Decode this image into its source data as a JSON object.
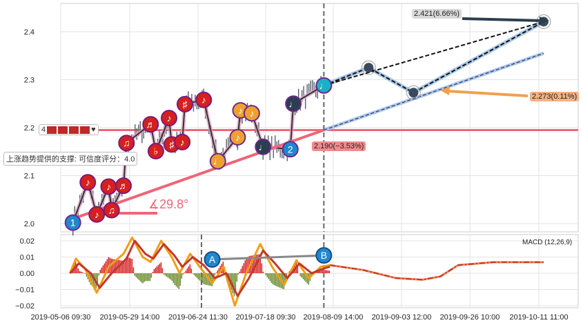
{
  "chart_data": [
    {
      "type": "line",
      "panel": "price",
      "x_ticks": [
        "2019-05-06 09:30",
        "2019-05-29 14:00",
        "2019-06-24 11:30",
        "2019-07-18 09:30",
        "2019-08-09 14:00",
        "2019-09-03 12:00",
        "2019-09-26 10:00",
        "2019-10-11 11:00"
      ],
      "y_ticks": [
        "2.0",
        "2.1",
        "2.2",
        "2.3",
        "2.4"
      ],
      "ylim": [
        1.98,
        2.46
      ],
      "grid": true,
      "markers": [
        {
          "date": "2019-05-10",
          "price": 2.002,
          "glyph": "1",
          "color": "#1e88d0"
        },
        {
          "date": "2019-05-15",
          "price": 2.086,
          "glyph": "♪",
          "color": "#d62020"
        },
        {
          "date": "2019-05-18",
          "price": 2.019,
          "glyph": "♪",
          "color": "#d62020"
        },
        {
          "date": "2019-05-22",
          "price": 2.077,
          "glyph": "♪",
          "color": "#d62020"
        },
        {
          "date": "2019-05-23",
          "price": 2.028,
          "glyph": "♫",
          "color": "#d62020"
        },
        {
          "date": "2019-05-27",
          "price": 2.079,
          "glyph": "♬",
          "color": "#d62020"
        },
        {
          "date": "2019-05-28",
          "price": 2.168,
          "glyph": "♫",
          "color": "#d62020"
        },
        {
          "date": "2019-06-06",
          "price": 2.207,
          "glyph": "♬",
          "color": "#d62020"
        },
        {
          "date": "2019-06-08",
          "price": 2.151,
          "glyph": "♭",
          "color": "#d62020"
        },
        {
          "date": "2019-06-13",
          "price": 2.22,
          "glyph": "♪",
          "color": "#d62020"
        },
        {
          "date": "2019-06-14",
          "price": 2.165,
          "glyph": "♯",
          "color": "#d62020"
        },
        {
          "date": "2019-06-18",
          "price": 2.17,
          "glyph": "♪",
          "color": "#d62020"
        },
        {
          "date": "2019-06-19",
          "price": 2.249,
          "glyph": "♯",
          "color": "#d62020"
        },
        {
          "date": "2019-06-26",
          "price": 2.258,
          "glyph": "♪",
          "color": "#d62020"
        },
        {
          "date": "2019-07-01",
          "price": 2.13,
          "glyph": "♩",
          "color": "#f0a030"
        },
        {
          "date": "2019-07-08",
          "price": 2.18,
          "glyph": "♪",
          "color": "#f0a030"
        },
        {
          "date": "2019-07-09",
          "price": 2.236,
          "glyph": "♪",
          "color": "#f0a030"
        },
        {
          "date": "2019-07-13",
          "price": 2.23,
          "glyph": "♪",
          "color": "#f0a030"
        },
        {
          "date": "2019-07-17",
          "price": 2.16,
          "glyph": "♩",
          "color": "#2c3e50"
        },
        {
          "date": "2019-07-26",
          "price": 2.155,
          "glyph": "2",
          "color": "#1e88d0"
        },
        {
          "date": "2019-07-27",
          "price": 2.25,
          "glyph": "♩",
          "color": "#2c3e50"
        },
        {
          "date": "2019-08-06",
          "price": 2.288,
          "glyph": "♩",
          "color": "#1ab0c8"
        }
      ],
      "forecast": [
        {
          "date": "2019-08-06",
          "price": 2.288
        },
        {
          "date": "2019-08-22",
          "price": 2.325
        },
        {
          "date": "2019-09-07",
          "price": 2.273
        },
        {
          "date": "2019-10-12",
          "price": 2.421
        }
      ],
      "support_line": {
        "from": {
          "date": "2019-05-10",
          "price": 2.01
        },
        "to": {
          "date": "2019-08-06",
          "price": 2.195
        },
        "extend_to": {
          "date": "2019-10-12",
          "price": 2.355
        }
      },
      "resistance_level": 2.195,
      "angle_label": "∡29.8°",
      "annotations": {
        "top": "2.421(6.66%)",
        "mid": "2.273(0.11%)",
        "support": "2.190(−3.53%)"
      },
      "legend_number": "4",
      "support_tooltip": "上涨趋势提供的支撑: 可信度评分：4.0",
      "vline_date": "2019-08-06"
    },
    {
      "type": "line",
      "panel": "macd",
      "title": "MACD (12,26,9)",
      "y_ticks": [
        "0.02",
        "0.01",
        "0.00",
        "−0.01",
        "−0.02"
      ],
      "ylim": [
        -0.021,
        0.024
      ],
      "dif": [
        [
          "2019-05-09",
          0
        ],
        [
          "2019-05-11",
          0.009
        ],
        [
          "2019-05-14",
          0.003
        ],
        [
          "2019-05-18",
          -0.012
        ],
        [
          "2019-05-22",
          0.004
        ],
        [
          "2019-05-27",
          0.012
        ],
        [
          "2019-05-30",
          0.022
        ],
        [
          "2019-06-03",
          0.01
        ],
        [
          "2019-06-06",
          0.007
        ],
        [
          "2019-06-10",
          0.02
        ],
        [
          "2019-06-14",
          0.01
        ],
        [
          "2019-06-17",
          0.0
        ],
        [
          "2019-06-21",
          0.012
        ],
        [
          "2019-06-25",
          0.003
        ],
        [
          "2019-06-29",
          -0.006
        ],
        [
          "2019-07-03",
          0.004
        ],
        [
          "2019-07-07",
          -0.02
        ],
        [
          "2019-07-11",
          0.0
        ],
        [
          "2019-07-16",
          0.018
        ],
        [
          "2019-07-20",
          0.004
        ],
        [
          "2019-07-24",
          -0.007
        ],
        [
          "2019-07-28",
          0.008
        ],
        [
          "2019-08-01",
          -0.003
        ],
        [
          "2019-08-05",
          0.004
        ],
        [
          "2019-08-08",
          0.005
        ]
      ],
      "dea": [
        [
          "2019-05-09",
          0
        ],
        [
          "2019-05-12",
          0.006
        ],
        [
          "2019-05-16",
          0.0
        ],
        [
          "2019-05-19",
          -0.009
        ],
        [
          "2019-05-23",
          0.0
        ],
        [
          "2019-05-28",
          0.009
        ],
        [
          "2019-05-31",
          0.02
        ],
        [
          "2019-06-04",
          0.012
        ],
        [
          "2019-06-07",
          0.009
        ],
        [
          "2019-06-11",
          0.018
        ],
        [
          "2019-06-15",
          0.011
        ],
        [
          "2019-06-18",
          0.004
        ],
        [
          "2019-06-22",
          0.01
        ],
        [
          "2019-06-26",
          0.005
        ],
        [
          "2019-06-30",
          -0.003
        ],
        [
          "2019-07-04",
          0.0
        ],
        [
          "2019-07-08",
          -0.014
        ],
        [
          "2019-07-12",
          -0.003
        ],
        [
          "2019-07-17",
          0.014
        ],
        [
          "2019-07-21",
          0.006
        ],
        [
          "2019-07-25",
          -0.003
        ],
        [
          "2019-07-29",
          0.006
        ],
        [
          "2019-08-02",
          0.0
        ],
        [
          "2019-08-06",
          0.003
        ],
        [
          "2019-08-08",
          0.004
        ]
      ],
      "forecast": [
        [
          "2019-08-08",
          0.005
        ],
        [
          "2019-08-20",
          0.002
        ],
        [
          "2019-09-01",
          -0.003
        ],
        [
          "2019-09-10",
          -0.004
        ],
        [
          "2019-09-16",
          -0.002
        ],
        [
          "2019-09-22",
          0.005
        ],
        [
          "2019-10-01",
          0.0068
        ],
        [
          "2019-10-12",
          0.0068
        ]
      ],
      "divergence": [
        {
          "label": "A",
          "date": "2019-06-29",
          "value": 0.0085
        },
        {
          "label": "B",
          "date": "2019-08-06",
          "value": 0.011
        }
      ]
    }
  ],
  "colors": {
    "up": "#d62020",
    "down": "#6a8a2a",
    "dif": "#f39c12",
    "dea": "#c0392b",
    "support": "#ee6677",
    "forecast": "#aac8e8"
  }
}
